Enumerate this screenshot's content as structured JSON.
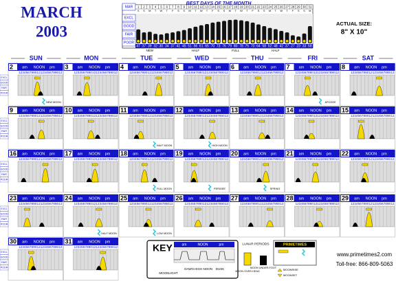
{
  "header": {
    "month": "MARCH",
    "year": "2003",
    "actual_size_label": "ACTUAL SIZE:",
    "actual_size": "8\" X 10\""
  },
  "chart_data": {
    "type": "bar",
    "title": "BEST DAYS OF THE MONTH",
    "month_label": "MAR",
    "rating_labels": [
      "EXCL",
      "GOOD",
      "FAIR",
      "POOR"
    ],
    "categories": [
      "1",
      "2",
      "3",
      "4",
      "5",
      "6",
      "7",
      "8",
      "9",
      "10",
      "11",
      "12",
      "13",
      "14",
      "15",
      "16",
      "17",
      "18",
      "19",
      "20",
      "21",
      "22",
      "23",
      "24",
      "25",
      "26",
      "27",
      "28",
      "29",
      "30",
      "31"
    ],
    "weekdays": [
      "S",
      "S",
      "M",
      "T",
      "W",
      "T",
      "F",
      "S",
      "S",
      "M",
      "T",
      "W",
      "T",
      "F",
      "S",
      "S",
      "M",
      "T",
      "W",
      "T",
      "F",
      "S",
      "S",
      "M",
      "T",
      "W",
      "T",
      "F",
      "S",
      "S",
      "M"
    ],
    "values": [
      47,
      37,
      39,
      32,
      30,
      34,
      37,
      41,
      45,
      51,
      56,
      61,
      65,
      70,
      73,
      76,
      79,
      80,
      78,
      75,
      70,
      64,
      58,
      52,
      48,
      42,
      37,
      27,
      23,
      33,
      58
    ],
    "ylim": [
      0,
      100
    ],
    "color": "#111111",
    "phases": [
      "NEW",
      "HALF",
      "FULL",
      "HALF"
    ]
  },
  "calendar": {
    "weekdays": [
      "SUN",
      "MON",
      "TUE",
      "WED",
      "THU",
      "FRI",
      "SAT"
    ],
    "rating_labels": [
      "EXCL",
      "GOOD",
      "FAIR",
      "POOR"
    ],
    "am": "am",
    "noon": "NOON",
    "pm": "pm",
    "hour_digits": "123456789012123456789012",
    "weeks": [
      [
        "2",
        "3",
        "4",
        "5",
        "6",
        "7",
        "8"
      ],
      [
        "9",
        "10",
        "11",
        "12",
        "13",
        "14",
        "15"
      ],
      [
        "16",
        "17",
        "18",
        "19",
        "20",
        "21",
        "22"
      ],
      [
        "23",
        "24",
        "25",
        "26",
        "27",
        "28",
        "29"
      ],
      [
        "30",
        "31"
      ]
    ],
    "notes": [
      {
        "week": 0,
        "day": 0,
        "text": "NEW MOON"
      },
      {
        "week": 0,
        "day": 5,
        "text": "APOGEE"
      },
      {
        "week": 1,
        "day": 2,
        "text": "HALF MOON"
      },
      {
        "week": 1,
        "day": 3,
        "text": "HIGH MOON"
      },
      {
        "week": 2,
        "day": 2,
        "text": "FULL MOON"
      },
      {
        "week": 2,
        "day": 3,
        "text": "PERIGEE"
      },
      {
        "week": 2,
        "day": 4,
        "text": "SPRING"
      },
      {
        "week": 3,
        "day": 1,
        "text": "HALF MOON"
      },
      {
        "week": 3,
        "day": 2,
        "text": "LOW MOON"
      }
    ]
  },
  "key": {
    "title": "KEY",
    "am": "am",
    "noon": "NOON",
    "pm": "pm",
    "labels": [
      "MOONLIGHT",
      "DAWN",
      "HIGH NOON",
      "DUSK"
    ],
    "lunar": "LUNAR PERIODS",
    "overhead": "MOON OVER-HEAD",
    "underfoot": "MOON UNDER-FOOT",
    "primetimes": "PRIMETIMES",
    "moonrise": "MOONRISE",
    "moonset": "MOONSET"
  },
  "contact": {
    "website": "www.primetimes2.com",
    "phone": "Toll-free: 866-809-5063"
  }
}
